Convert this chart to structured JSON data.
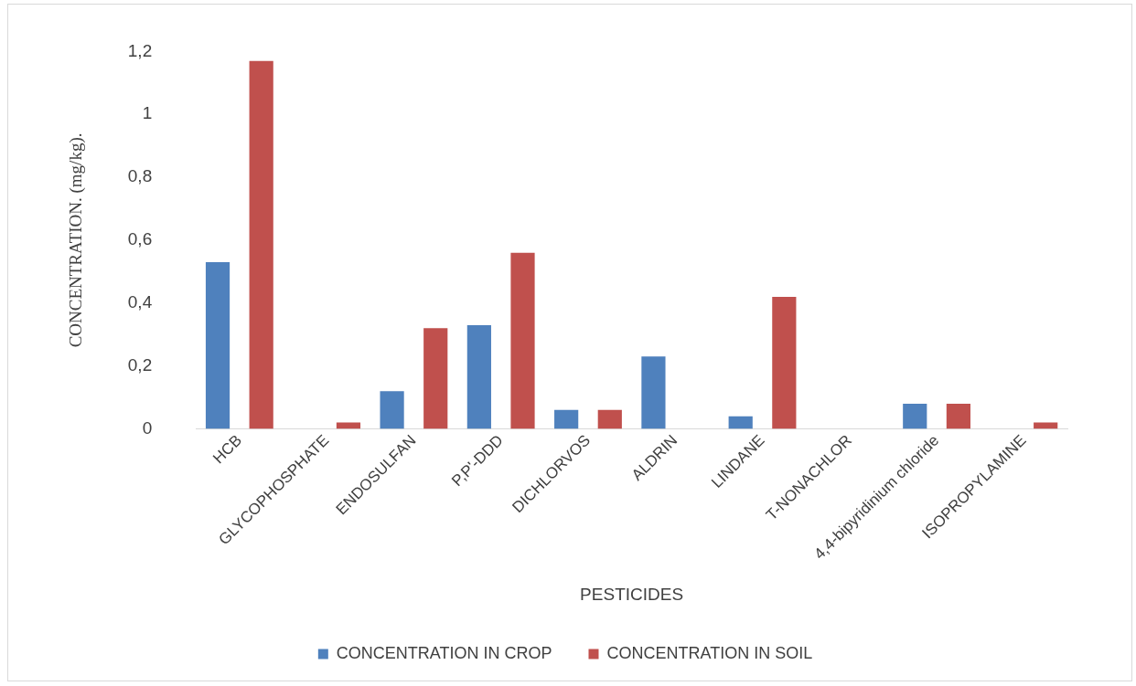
{
  "chart_data": {
    "type": "bar",
    "xlabel": "PESTICIDES",
    "ylabel": "CONCENTRATION. (mg/kg).",
    "categories": [
      "HCB",
      "GLYCOPHOSPHATE",
      "ENDOSULFAN",
      "P,P'-DDD",
      "DICHLORVOS",
      "ALDRIN",
      "LINDANE",
      "T-NONACHLOR",
      "4,4-bipyridinium chloride",
      "ISOPROPYLAMINE"
    ],
    "series": [
      {
        "name": "CONCENTRATION IN CROP",
        "color": "#4f81bd",
        "values": [
          0.53,
          0,
          0.12,
          0.33,
          0.06,
          0.23,
          0.04,
          0,
          0.08,
          0
        ]
      },
      {
        "name": "CONCENTRATION IN SOIL",
        "color": "#c0504d",
        "values": [
          1.17,
          0.02,
          0.32,
          0.56,
          0.06,
          0,
          0.42,
          0,
          0.08,
          0.02
        ]
      }
    ],
    "ylim": [
      0,
      1.2
    ],
    "yticks": [
      {
        "value": 0,
        "label": "0"
      },
      {
        "value": 0.2,
        "label": "0,2"
      },
      {
        "value": 0.4,
        "label": "0,4"
      },
      {
        "value": 0.6,
        "label": "0,6"
      },
      {
        "value": 0.8,
        "label": "0,8"
      },
      {
        "value": 1,
        "label": "1"
      },
      {
        "value": 1.2,
        "label": "1,2"
      }
    ],
    "grid": false,
    "legend": "bottom"
  }
}
